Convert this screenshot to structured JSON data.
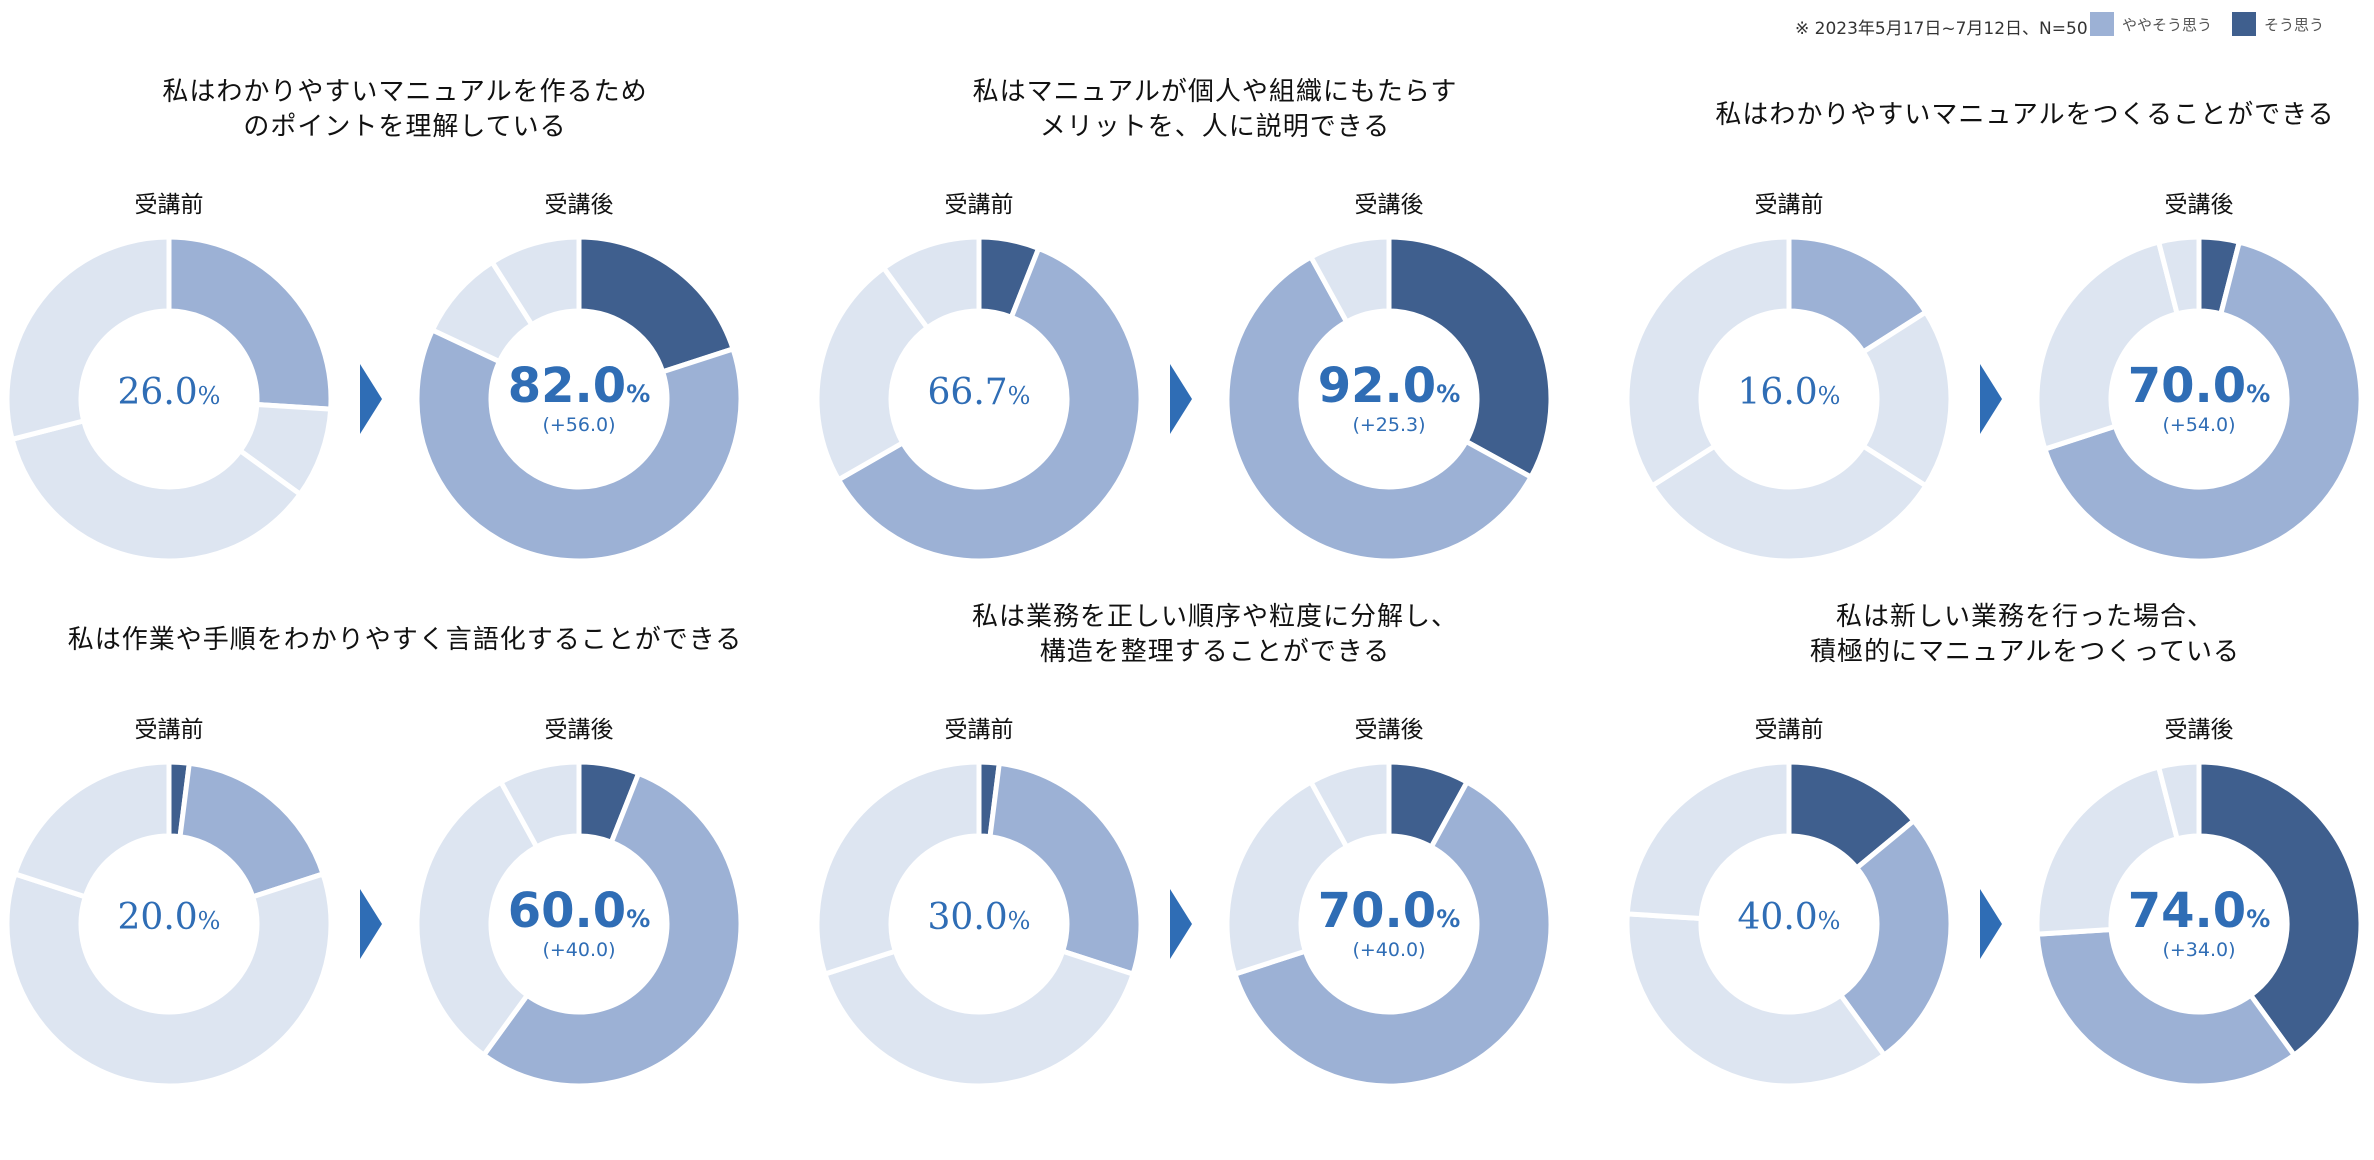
{
  "header": {
    "note": "※ 2023年5月17日~7月12日、N=50",
    "legend": [
      {
        "label": "ややそう思う",
        "color": "#9cb1d5"
      },
      {
        "label": "そう思う",
        "color": "#3f5f8e"
      }
    ]
  },
  "colors": {
    "strongly_agree": "#3f5f8e",
    "somewhat_agree": "#9cb1d5",
    "neutral": "#dde5f1",
    "somewhat_disagree": "#dde5f1",
    "disagree": "#dde5f1",
    "accent_text": "#2f6db5"
  },
  "labels": {
    "before": "受講前",
    "after": "受講後",
    "pct_sign": "%"
  },
  "chart_data": [
    {
      "type": "pie",
      "title_lines": [
        "私はわかりやすいマニュアルを作るため",
        "のポイントを理解している"
      ],
      "before": {
        "value_text": "26.0",
        "segments": [
          0,
          26,
          9,
          36,
          29
        ]
      },
      "after": {
        "value_text": "82.0",
        "delta_text": "(+56.0)",
        "segments": [
          20,
          62,
          0,
          9,
          9
        ]
      }
    },
    {
      "type": "pie",
      "title_lines": [
        "私はマニュアルが個人や組織にもたらす",
        "メリットを、人に説明できる"
      ],
      "before": {
        "value_text": "66.7",
        "segments": [
          6,
          60.7,
          0,
          23.3,
          10
        ]
      },
      "after": {
        "value_text": "92.0",
        "delta_text": "(+25.3)",
        "segments": [
          33,
          59,
          0,
          0,
          8
        ]
      }
    },
    {
      "type": "pie",
      "title_lines": [
        "私はわかりやすいマニュアルをつくることができる"
      ],
      "before": {
        "value_text": "16.0",
        "segments": [
          0,
          16,
          18,
          32,
          34
        ]
      },
      "after": {
        "value_text": "70.0",
        "delta_text": "(+54.0)",
        "segments": [
          4,
          66,
          0,
          26,
          4
        ]
      }
    },
    {
      "type": "pie",
      "title_lines": [
        "私は作業や手順をわかりやすく言語化することができる"
      ],
      "before": {
        "value_text": "20.0",
        "segments": [
          2,
          18,
          0,
          60,
          20
        ]
      },
      "after": {
        "value_text": "60.0",
        "delta_text": "(+40.0)",
        "segments": [
          6,
          54,
          0,
          32,
          8
        ]
      }
    },
    {
      "type": "pie",
      "title_lines": [
        "私は業務を正しい順序や粒度に分解し、",
        "構造を整理することができる"
      ],
      "before": {
        "value_text": "30.0",
        "segments": [
          2,
          28,
          0,
          40,
          30
        ]
      },
      "after": {
        "value_text": "70.0",
        "delta_text": "(+40.0)",
        "segments": [
          8,
          62,
          0,
          22,
          8
        ]
      }
    },
    {
      "type": "pie",
      "title_lines": [
        "私は新しい業務を行った場合、",
        "積極的にマニュアルをつくっている"
      ],
      "before": {
        "value_text": "40.0",
        "segments": [
          14,
          26,
          0,
          36,
          24
        ]
      },
      "after": {
        "value_text": "74.0",
        "delta_text": "(+34.0)",
        "segments": [
          40,
          34,
          0,
          22,
          4
        ]
      }
    }
  ]
}
